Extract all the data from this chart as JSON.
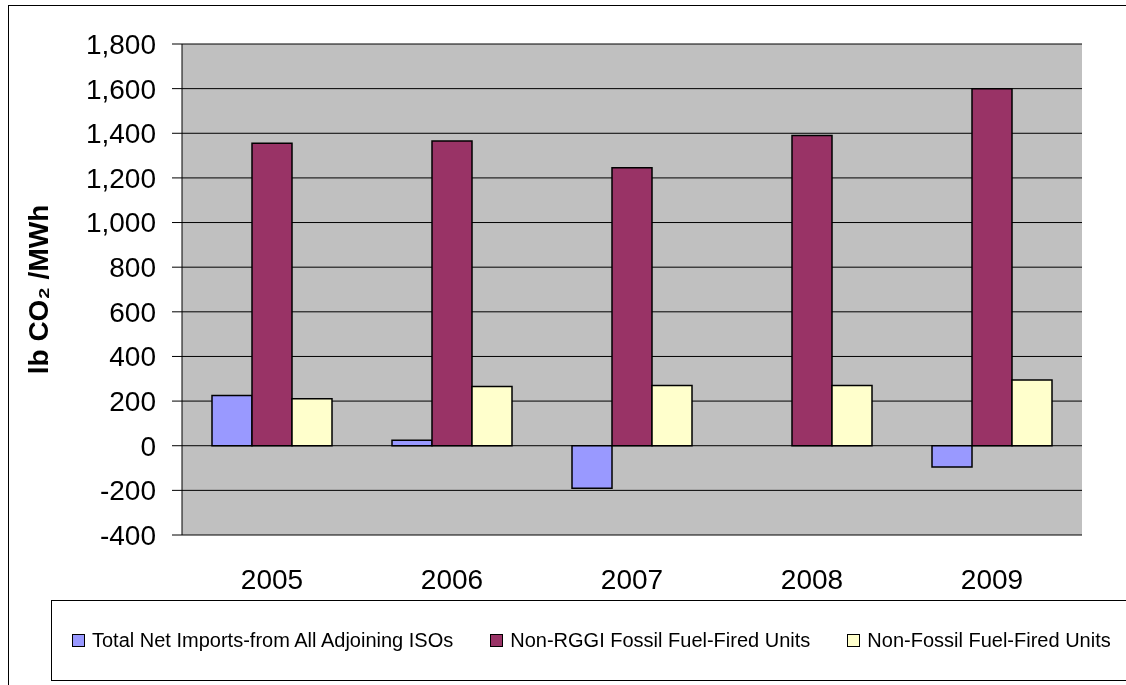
{
  "chart_data": {
    "type": "bar",
    "categories": [
      "2005",
      "2006",
      "2007",
      "2008",
      "2009"
    ],
    "ylabel": "lb CO₂ /MWh",
    "series": [
      {
        "name": "Total Net Imports-from All Adjoining ISOs",
        "color": "#9999ff",
        "values": [
          225,
          25,
          -190,
          null,
          -95
        ]
      },
      {
        "name": "Non-RGGI Fossil Fuel-Fired Units",
        "color": "#993366",
        "values": [
          1355,
          1365,
          1245,
          1390,
          1600
        ]
      },
      {
        "name": "Non-Fossil Fuel-Fired Units",
        "color": "#ffffcc",
        "values": [
          210,
          265,
          270,
          270,
          295
        ]
      }
    ],
    "ylim": [
      -400,
      1800
    ],
    "yticks": [
      -400,
      -200,
      0,
      200,
      400,
      600,
      800,
      {
        "value": 1000,
        "label": "1,000"
      },
      {
        "value": 1200,
        "label": "1,200"
      },
      {
        "value": 1400,
        "label": "1,400"
      },
      {
        "value": 1600,
        "label": "1,600"
      },
      {
        "value": 1800,
        "label": "1,800"
      }
    ],
    "grid": "y",
    "legend": "bottom"
  }
}
